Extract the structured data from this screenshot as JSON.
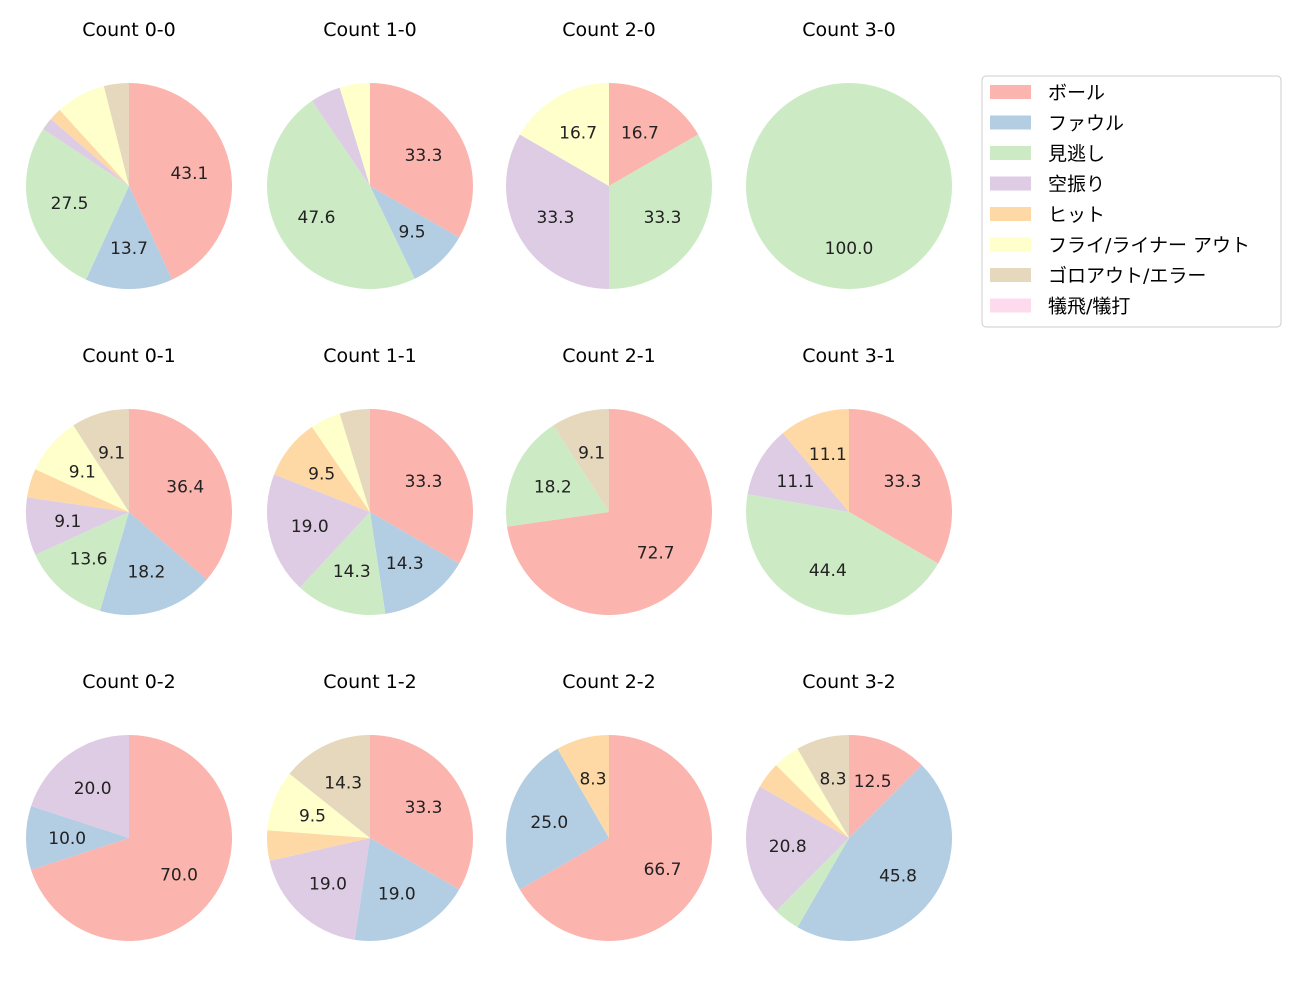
{
  "chart_data": {
    "type": "pie",
    "categories": [
      "ボール",
      "ファウル",
      "見逃し",
      "空振り",
      "ヒット",
      "フライ/ライナー アウト",
      "ゴロアウト/エラー",
      "犠飛/犠打"
    ],
    "colors": [
      "#fbb4ae",
      "#b3cde3",
      "#ccebc5",
      "#decbe4",
      "#fed9a6",
      "#ffffcc",
      "#e5d8bd",
      "#fddaec"
    ],
    "legend_placement": "top-right",
    "start_angle": 90,
    "direction": "clockwise",
    "label_threshold_percent": 8,
    "pies": [
      {
        "title": "Count 0-0",
        "values": [
          22,
          7,
          14,
          1,
          1,
          4,
          2,
          0
        ]
      },
      {
        "title": "Count 1-0",
        "values": [
          7,
          2,
          10,
          1,
          0,
          1,
          0,
          0
        ]
      },
      {
        "title": "Count 2-0",
        "values": [
          1,
          0,
          2,
          2,
          0,
          1,
          0,
          0
        ]
      },
      {
        "title": "Count 3-0",
        "values": [
          0,
          0,
          1,
          0,
          0,
          0,
          0,
          0
        ]
      },
      {
        "title": "Count 0-1",
        "values": [
          8,
          4,
          3,
          2,
          1,
          2,
          2,
          0
        ]
      },
      {
        "title": "Count 1-1",
        "values": [
          7,
          3,
          3,
          4,
          2,
          1,
          1,
          0
        ]
      },
      {
        "title": "Count 2-1",
        "values": [
          8,
          0,
          2,
          0,
          0,
          0,
          1,
          0
        ]
      },
      {
        "title": "Count 3-1",
        "values": [
          3,
          0,
          4,
          1,
          1,
          0,
          0,
          0
        ]
      },
      {
        "title": "Count 0-2",
        "values": [
          7,
          1,
          0,
          2,
          0,
          0,
          0,
          0
        ]
      },
      {
        "title": "Count 1-2",
        "values": [
          7,
          4,
          0,
          4,
          1,
          2,
          3,
          0
        ]
      },
      {
        "title": "Count 2-2",
        "values": [
          8,
          3,
          0,
          0,
          1,
          0,
          0,
          0
        ]
      },
      {
        "title": "Count 3-2",
        "values": [
          3,
          11,
          1,
          5,
          1,
          1,
          2,
          0
        ]
      }
    ]
  }
}
